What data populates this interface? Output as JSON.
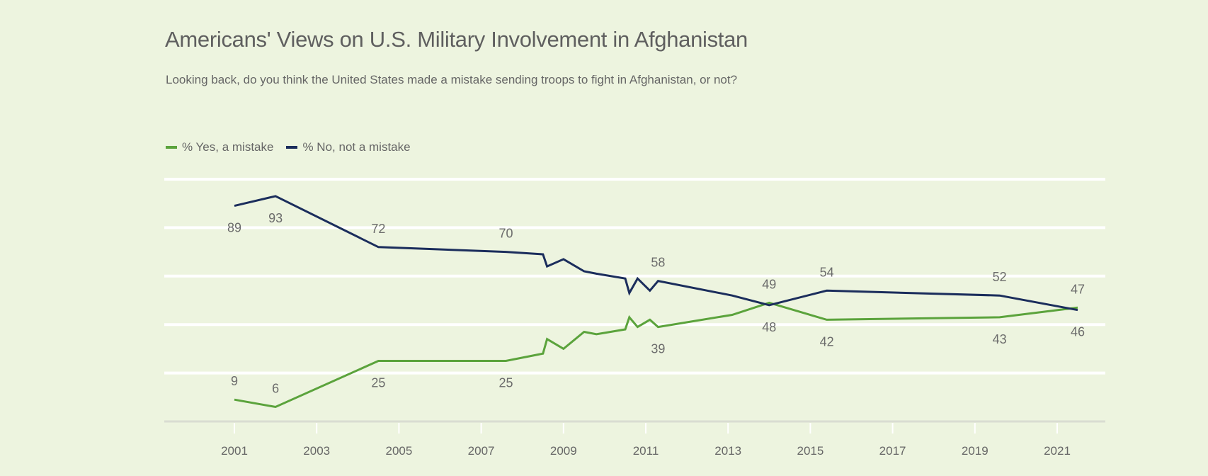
{
  "chart_data": {
    "type": "line",
    "title": "Americans' Views on U.S. Military Involvement in Afghanistan",
    "subtitle": "Looking back, do you think the United States made a mistake sending troops to fight in Afghanistan, or not?",
    "xlim": [
      2000.1,
      2022.5
    ],
    "ylim": [
      0,
      100
    ],
    "grid": true,
    "legend_placement": "top-left",
    "x_ticks": [
      2001,
      2003,
      2005,
      2007,
      2009,
      2011,
      2013,
      2015,
      2017,
      2019,
      2021
    ],
    "y_gridlines": [
      0,
      20,
      40,
      60,
      80,
      100
    ],
    "x": [
      2001.0,
      2002.0,
      2004.5,
      2007.6,
      2008.5,
      2008.6,
      2009.0,
      2009.5,
      2009.8,
      2010.5,
      2010.6,
      2010.8,
      2011.1,
      2011.3,
      2013.1,
      2014.0,
      2015.4,
      2019.6,
      2021.5
    ],
    "series": [
      {
        "name": "% Yes, a mistake",
        "color": "#5ba33c",
        "values": [
          9,
          6,
          25,
          25,
          28,
          34,
          30,
          37,
          36,
          38,
          43,
          39,
          42,
          39,
          44,
          49,
          42,
          43,
          47
        ],
        "data_labels": [
          {
            "index": 0,
            "text": "9",
            "position": "above"
          },
          {
            "index": 1,
            "text": "6",
            "position": "above"
          },
          {
            "index": 2,
            "text": "25",
            "position": "below"
          },
          {
            "index": 3,
            "text": "25",
            "position": "below"
          },
          {
            "index": 13,
            "text": "39",
            "position": "below"
          },
          {
            "index": 15,
            "text": "49",
            "position": "above"
          },
          {
            "index": 16,
            "text": "42",
            "position": "below"
          },
          {
            "index": 17,
            "text": "43",
            "position": "below"
          },
          {
            "index": 18,
            "text": "47",
            "position": "above"
          }
        ]
      },
      {
        "name": "% No, not a mistake",
        "color": "#1b2d5c",
        "values": [
          89,
          93,
          72,
          70,
          69,
          64,
          67,
          62,
          61,
          59,
          53,
          59,
          54,
          58,
          52,
          48,
          54,
          52,
          46
        ],
        "data_labels": [
          {
            "index": 0,
            "text": "89",
            "position": "below"
          },
          {
            "index": 1,
            "text": "93",
            "position": "below"
          },
          {
            "index": 2,
            "text": "72",
            "position": "above"
          },
          {
            "index": 3,
            "text": "70",
            "position": "above"
          },
          {
            "index": 13,
            "text": "58",
            "position": "above"
          },
          {
            "index": 15,
            "text": "48",
            "position": "below"
          },
          {
            "index": 16,
            "text": "54",
            "position": "above"
          },
          {
            "index": 17,
            "text": "52",
            "position": "above"
          },
          {
            "index": 18,
            "text": "46",
            "position": "below"
          }
        ]
      }
    ]
  }
}
